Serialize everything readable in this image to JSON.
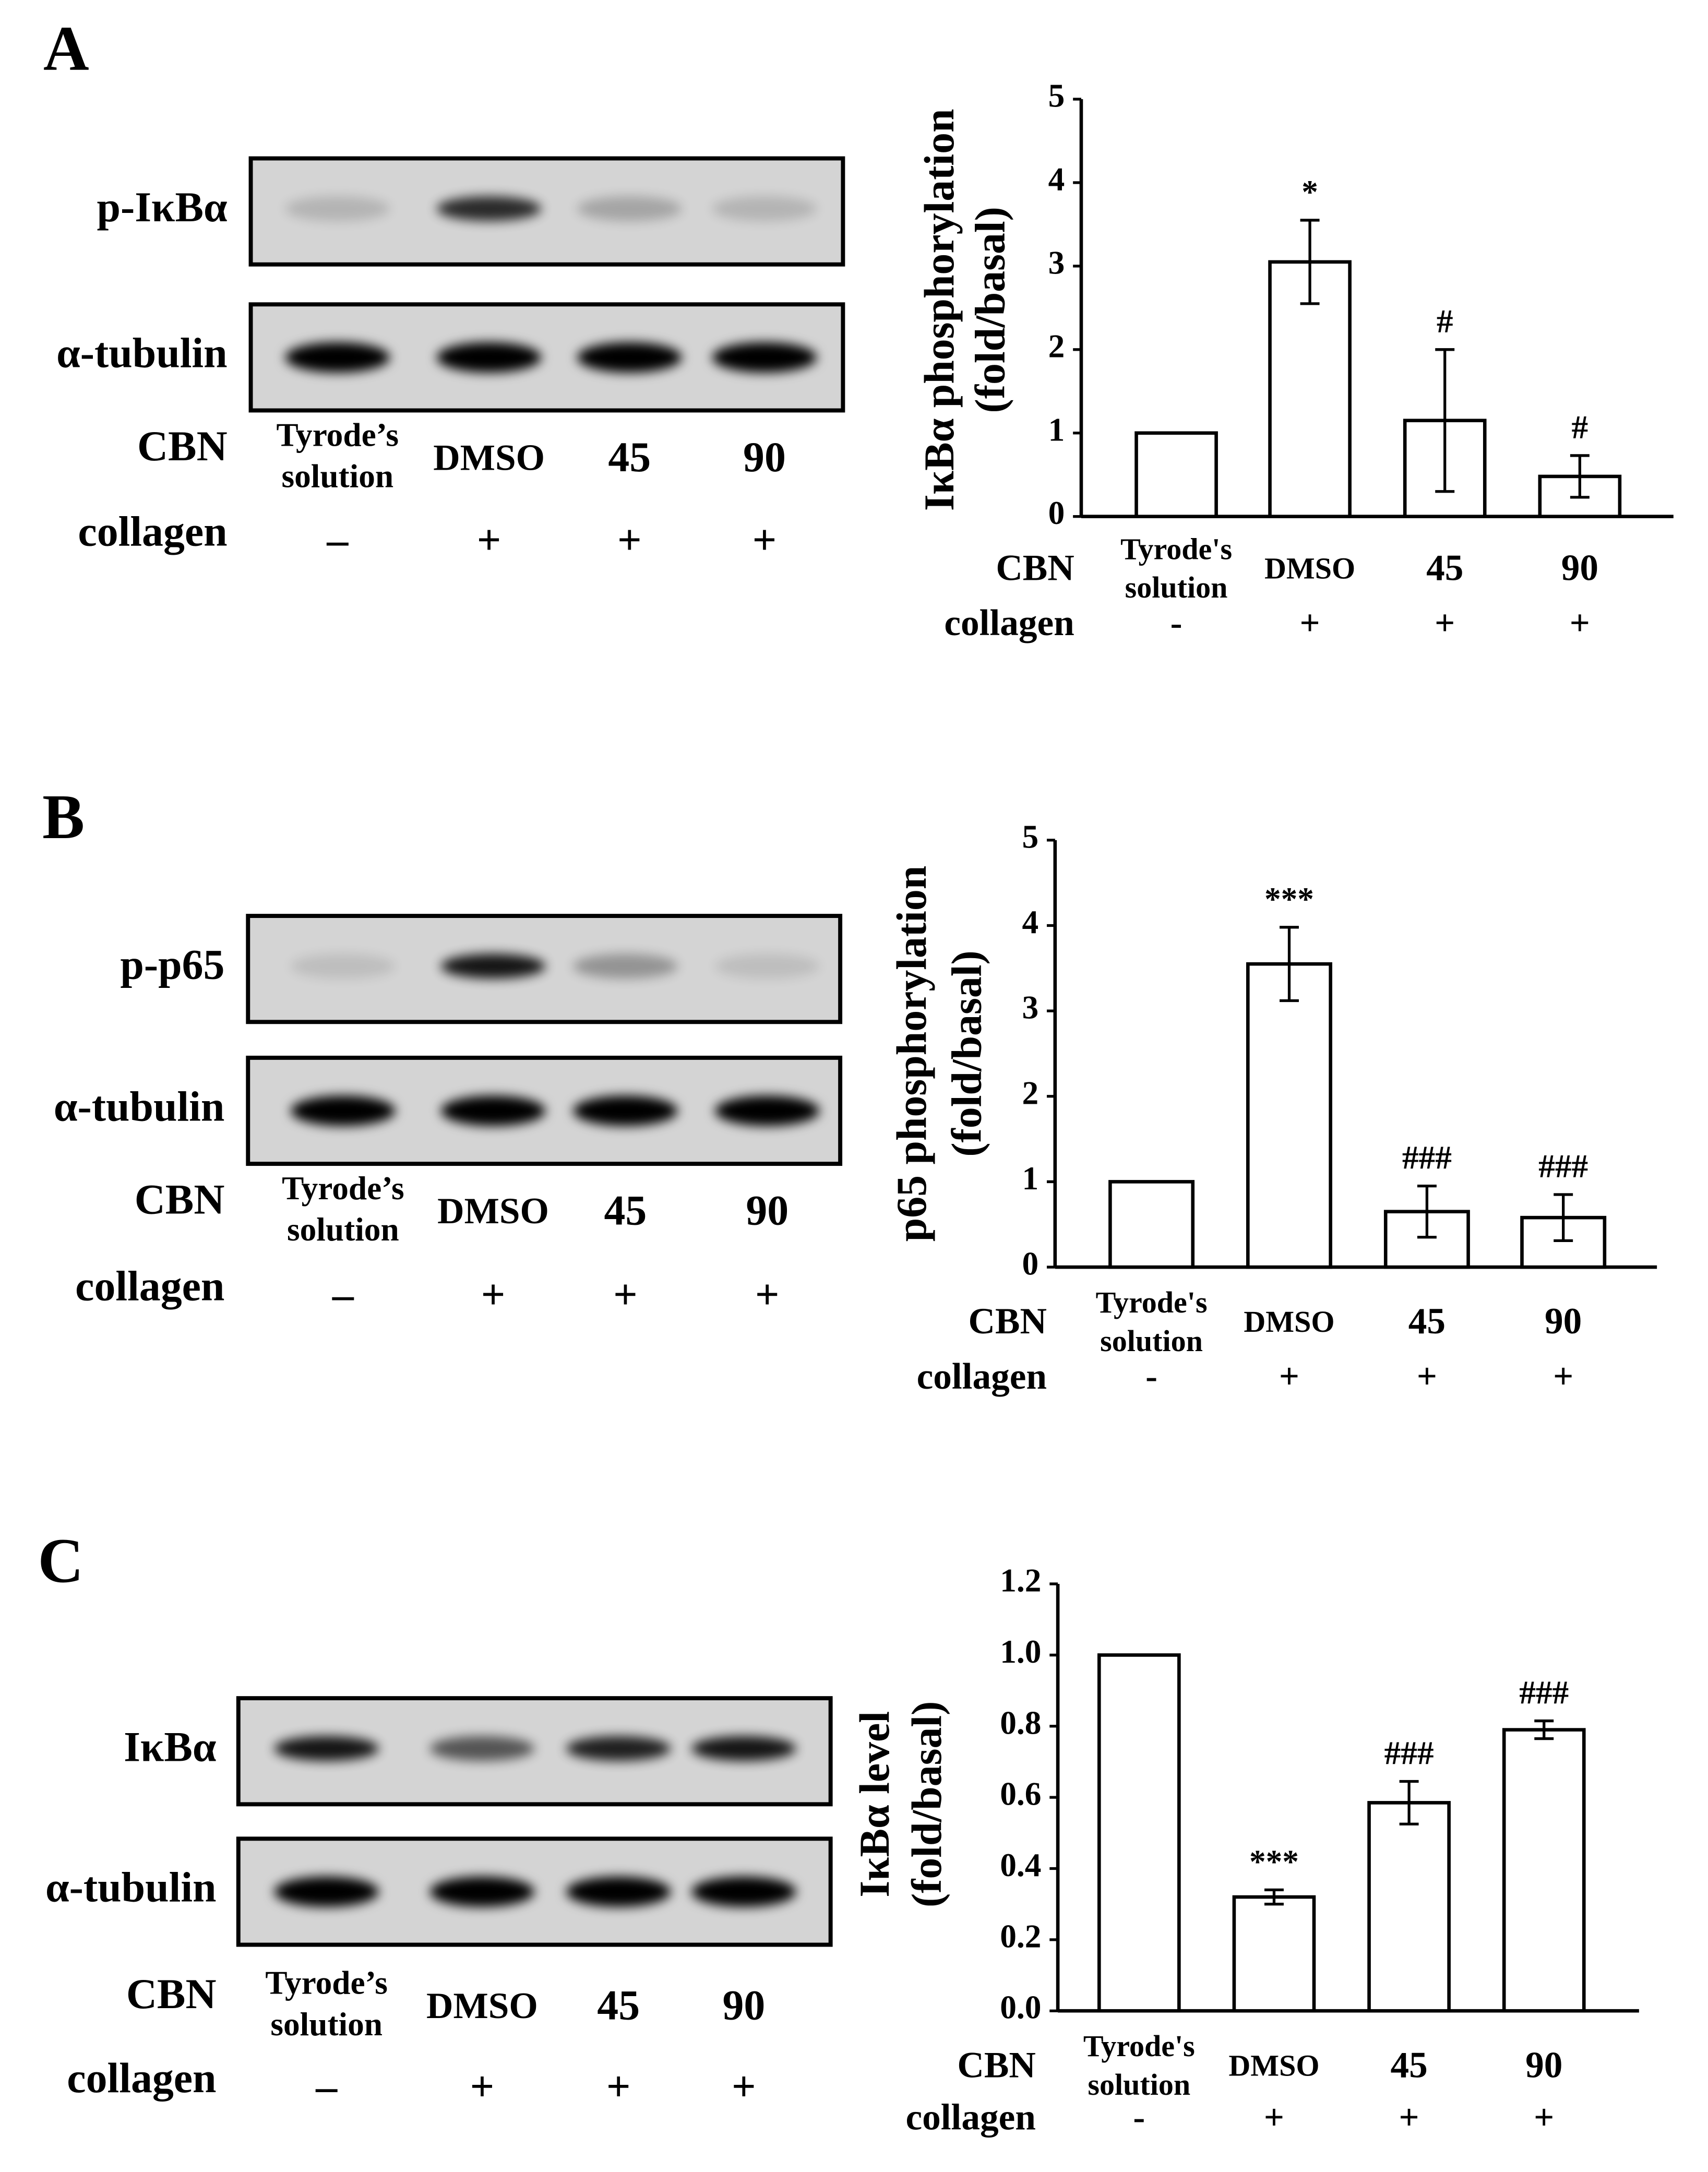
{
  "chart_data": [
    {
      "type": "bar",
      "ylabel": [
        "IκBα phosphorylation",
        "(fold/basal)"
      ],
      "categories": [
        "Tyrode's solution",
        "DMSO",
        "45",
        "90"
      ],
      "cbn_label": "CBN",
      "collagen_label": "collagen",
      "collagen": [
        "-",
        "+",
        "+",
        "+"
      ],
      "values": [
        1,
        3.05,
        1.15,
        0.48
      ],
      "errors": [
        0,
        0.5,
        0.85,
        0.25
      ],
      "annotations": [
        null,
        "*",
        "#",
        "#"
      ],
      "color": "#ffffff",
      "edgecolor": "#000000",
      "ylim": [
        0,
        5
      ],
      "yticks": [
        0,
        1,
        2,
        3,
        4,
        5
      ]
    },
    {
      "type": "bar",
      "ylabel": [
        "p65 phosphorylation",
        "(fold/basal)"
      ],
      "categories": [
        "Tyrode's solution",
        "DMSO",
        "45",
        "90"
      ],
      "cbn_label": "CBN",
      "collagen_label": "collagen",
      "collagen": [
        "-",
        "+",
        "+",
        "+"
      ],
      "values": [
        1,
        3.55,
        0.65,
        0.58
      ],
      "errors": [
        0,
        0.43,
        0.3,
        0.27
      ],
      "annotations": [
        null,
        "***",
        "###",
        "###"
      ],
      "color": "#ffffff",
      "edgecolor": "#000000",
      "ylim": [
        0,
        5
      ],
      "yticks": [
        0,
        1,
        2,
        3,
        4,
        5
      ]
    },
    {
      "type": "bar",
      "ylabel": [
        "IκBα level",
        "(fold/basal)"
      ],
      "categories": [
        "Tyrode's solution",
        "DMSO",
        "45",
        "90"
      ],
      "cbn_label": "CBN",
      "collagen_label": "collagen",
      "collagen": [
        "-",
        "+",
        "+",
        "+"
      ],
      "values": [
        1.0,
        0.32,
        0.585,
        0.79
      ],
      "errors": [
        0,
        0.02,
        0.06,
        0.025
      ],
      "annotations": [
        null,
        "***",
        "###",
        "###"
      ],
      "color": "#ffffff",
      "edgecolor": "#000000",
      "ylim": [
        0,
        1.2
      ],
      "yticks": [
        {
          "value": 0,
          "label": "0.0"
        },
        0.2,
        0.4,
        0.6,
        0.8,
        {
          "value": 1,
          "label": "1.0"
        },
        1.2
      ]
    }
  ],
  "blots": [
    {
      "letter": "A",
      "bands": [
        "p-IκBα",
        "α-tubulin"
      ],
      "cbn_label": "CBN",
      "lanes": [
        "Tyrode’s solution",
        "DMSO",
        "45",
        "90"
      ],
      "collagen_label": "collagen",
      "collagen": [
        "–",
        "+",
        "+",
        "+"
      ]
    },
    {
      "letter": "B",
      "bands": [
        "p-p65",
        "α-tubulin"
      ],
      "cbn_label": "CBN",
      "lanes": [
        "Tyrode’s solution",
        "DMSO",
        "45",
        "90"
      ],
      "collagen_label": "collagen",
      "collagen": [
        "–",
        "+",
        "+",
        "+"
      ]
    },
    {
      "letter": "C",
      "bands": [
        "IκBα",
        "α-tubulin"
      ],
      "cbn_label": "CBN",
      "lanes": [
        "Tyrode’s solution",
        "DMSO",
        "45",
        "90"
      ],
      "collagen_label": "collagen",
      "collagen": [
        "–",
        "+",
        "+",
        "+"
      ]
    }
  ]
}
